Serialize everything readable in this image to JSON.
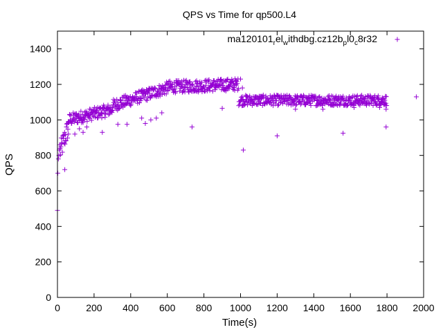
{
  "chart_data": {
    "type": "scatter",
    "title": "QPS vs Time for qp500.L4",
    "xlabel": "Time(s)",
    "ylabel": "QPS",
    "xlim": [
      0,
      2000
    ],
    "ylim": [
      0,
      1500
    ],
    "xticks": [
      "0",
      "200",
      "400",
      "600",
      "800",
      "1000",
      "1200",
      "1400",
      "1600",
      "1800",
      "2000"
    ],
    "yticks": [
      "0",
      "200",
      "400",
      "600",
      "800",
      "1000",
      "1200",
      "1400"
    ],
    "grid": false,
    "legend_position": "top-right",
    "marker": "+",
    "series_color": "#9400d3",
    "series": [
      {
        "name": "ma120101_rel_withdbg.cz12b_pl0_c8r32",
        "legend_parts": [
          {
            "text": "ma120101",
            "sub": false
          },
          {
            "text": "r",
            "sub": true
          },
          {
            "text": "el",
            "sub": false
          },
          {
            "text": "w",
            "sub": true
          },
          {
            "text": "ithdbg.cz12b",
            "sub": false
          },
          {
            "text": "p",
            "sub": true
          },
          {
            "text": "l0",
            "sub": false
          },
          {
            "text": "c",
            "sub": true
          },
          {
            "text": "8r32",
            "sub": false
          }
        ],
        "segments": [
          {
            "x0": 15,
            "x1": 60,
            "y0": 820,
            "y1": 960,
            "spread": 60
          },
          {
            "x0": 60,
            "x1": 300,
            "y0": 1000,
            "y1": 1060,
            "spread": 35
          },
          {
            "x0": 300,
            "x1": 600,
            "y0": 1080,
            "y1": 1180,
            "spread": 35
          },
          {
            "x0": 600,
            "x1": 990,
            "y0": 1185,
            "y1": 1200,
            "spread": 35
          },
          {
            "x0": 990,
            "x1": 1800,
            "y0": 1110,
            "y1": 1110,
            "spread": 30
          }
        ],
        "points": [
          [
            0,
            490
          ],
          [
            2,
            700
          ],
          [
            5,
            780
          ],
          [
            8,
            800
          ],
          [
            10,
            830
          ],
          [
            12,
            860
          ],
          [
            40,
            720
          ],
          [
            60,
            920
          ],
          [
            95,
            920
          ],
          [
            120,
            950
          ],
          [
            140,
            930
          ],
          [
            160,
            960
          ],
          [
            245,
            930
          ],
          [
            330,
            975
          ],
          [
            380,
            975
          ],
          [
            460,
            1010
          ],
          [
            480,
            980
          ],
          [
            510,
            1000
          ],
          [
            540,
            1010
          ],
          [
            570,
            1040
          ],
          [
            735,
            960
          ],
          [
            900,
            1065
          ],
          [
            1000,
            1230
          ],
          [
            1010,
            1180
          ],
          [
            1020,
            1100
          ],
          [
            1015,
            830
          ],
          [
            1200,
            910
          ],
          [
            1300,
            1060
          ],
          [
            1450,
            1060
          ],
          [
            1560,
            925
          ],
          [
            1620,
            1070
          ],
          [
            1760,
            1070
          ],
          [
            1795,
            960
          ],
          [
            1795,
            1060
          ],
          [
            1960,
            1130
          ]
        ]
      }
    ]
  }
}
